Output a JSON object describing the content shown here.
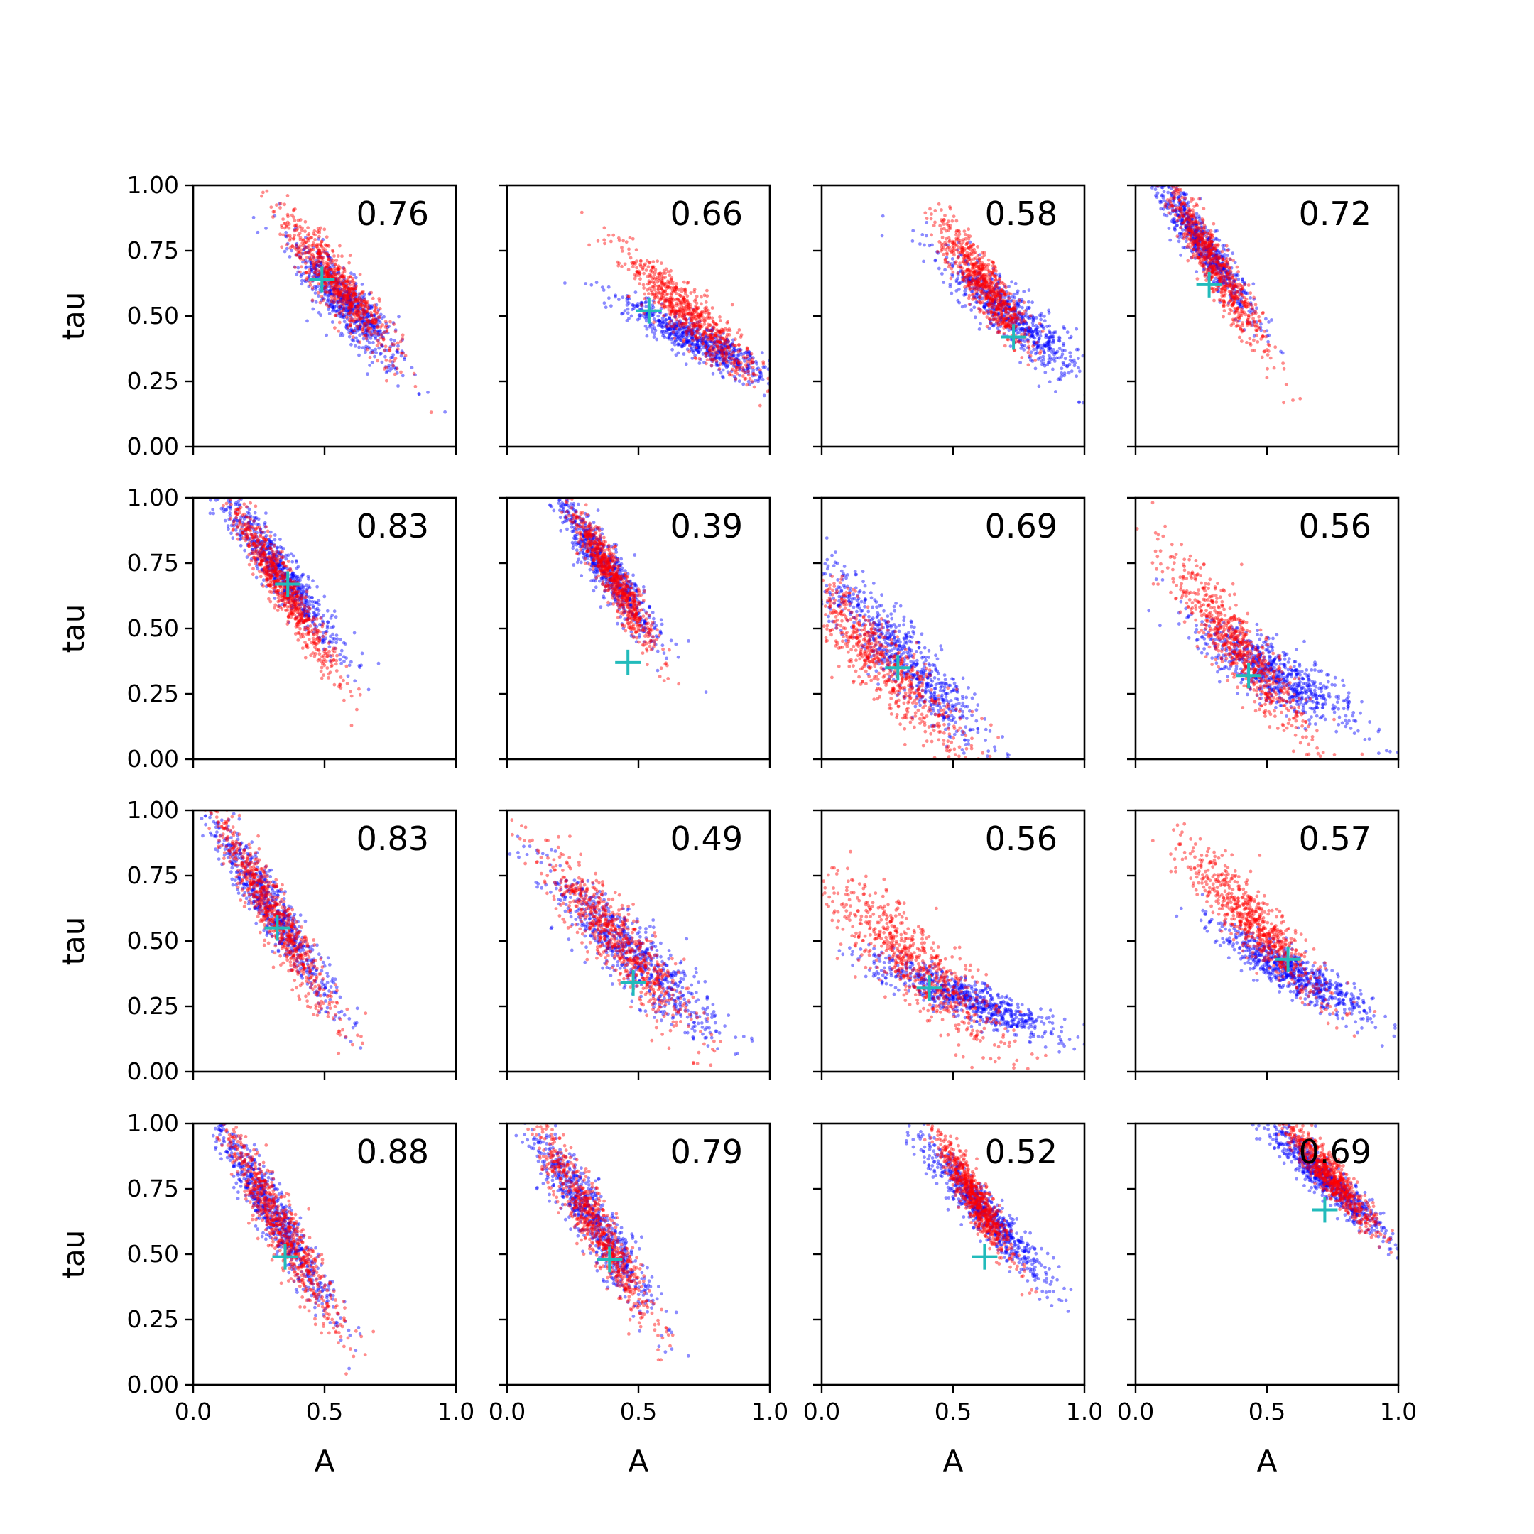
{
  "figure": {
    "x_label": "A",
    "y_label": "tau"
  },
  "chart_data": [
    {
      "type": "scatter",
      "row": 0,
      "col": 0,
      "xlim": [
        0,
        1
      ],
      "ylim": [
        0,
        1
      ],
      "annotation": "0.76",
      "marker": {
        "x": 0.49,
        "y": 0.64
      },
      "series": [
        {
          "color": "#0000ff",
          "center": [
            0.58,
            0.55
          ],
          "spread": [
            0.09,
            0.12
          ],
          "slope": -1.3
        },
        {
          "color": "#ff0000",
          "center": [
            0.55,
            0.62
          ],
          "spread": [
            0.08,
            0.13
          ],
          "slope": -1.4
        }
      ],
      "xticks": [
        0.0,
        0.5,
        1.0
      ],
      "yticks": [
        0.0,
        0.25,
        0.5,
        0.75,
        1.0
      ]
    },
    {
      "type": "scatter",
      "row": 0,
      "col": 1,
      "xlim": [
        0,
        1
      ],
      "ylim": [
        0,
        1
      ],
      "annotation": "0.66",
      "marker": {
        "x": 0.54,
        "y": 0.52
      },
      "series": [
        {
          "color": "#0000ff",
          "center": [
            0.74,
            0.4
          ],
          "spread": [
            0.12,
            0.08
          ],
          "slope": -0.6
        },
        {
          "color": "#ff0000",
          "center": [
            0.7,
            0.5
          ],
          "spread": [
            0.1,
            0.12
          ],
          "slope": -1.1
        }
      ],
      "xticks": [
        0.0,
        0.5,
        1.0
      ],
      "yticks": [
        0.0,
        0.25,
        0.5,
        0.75,
        1.0
      ]
    },
    {
      "type": "scatter",
      "row": 0,
      "col": 2,
      "xlim": [
        0,
        1
      ],
      "ylim": [
        0,
        1
      ],
      "annotation": "0.58",
      "marker": {
        "x": 0.73,
        "y": 0.42
      },
      "series": [
        {
          "color": "#0000ff",
          "center": [
            0.72,
            0.5
          ],
          "spread": [
            0.11,
            0.12
          ],
          "slope": -1.0
        },
        {
          "color": "#ff0000",
          "center": [
            0.62,
            0.62
          ],
          "spread": [
            0.07,
            0.12
          ],
          "slope": -1.6
        }
      ],
      "xticks": [
        0.0,
        0.5,
        1.0
      ],
      "yticks": [
        0.0,
        0.25,
        0.5,
        0.75,
        1.0
      ]
    },
    {
      "type": "scatter",
      "row": 0,
      "col": 3,
      "xlim": [
        0,
        1
      ],
      "ylim": [
        0,
        1
      ],
      "annotation": "0.72",
      "marker": {
        "x": 0.28,
        "y": 0.62
      },
      "series": [
        {
          "color": "#0000ff",
          "center": [
            0.25,
            0.78
          ],
          "spread": [
            0.06,
            0.14
          ],
          "slope": -1.5
        },
        {
          "color": "#ff0000",
          "center": [
            0.3,
            0.7
          ],
          "spread": [
            0.06,
            0.17
          ],
          "slope": -1.8
        }
      ],
      "xticks": [
        0.0,
        0.5,
        1.0
      ],
      "yticks": [
        0.0,
        0.25,
        0.5,
        0.75,
        1.0
      ]
    },
    {
      "type": "scatter",
      "row": 1,
      "col": 0,
      "xlim": [
        0,
        1
      ],
      "ylim": [
        0,
        1
      ],
      "annotation": "0.83",
      "marker": {
        "x": 0.36,
        "y": 0.67
      },
      "series": [
        {
          "color": "#0000ff",
          "center": [
            0.33,
            0.72
          ],
          "spread": [
            0.07,
            0.15
          ],
          "slope": -1.4
        },
        {
          "color": "#ff0000",
          "center": [
            0.34,
            0.66
          ],
          "spread": [
            0.06,
            0.16
          ],
          "slope": -1.7
        }
      ],
      "xticks": [
        0.0,
        0.5,
        1.0
      ],
      "yticks": [
        0.0,
        0.25,
        0.5,
        0.75,
        1.0
      ]
    },
    {
      "type": "scatter",
      "row": 1,
      "col": 1,
      "xlim": [
        0,
        1
      ],
      "ylim": [
        0,
        1
      ],
      "annotation": "0.39",
      "marker": {
        "x": 0.46,
        "y": 0.37
      },
      "series": [
        {
          "color": "#0000ff",
          "center": [
            0.38,
            0.73
          ],
          "spread": [
            0.07,
            0.14
          ],
          "slope": -1.6
        },
        {
          "color": "#ff0000",
          "center": [
            0.4,
            0.7
          ],
          "spread": [
            0.05,
            0.14
          ],
          "slope": -1.8
        }
      ],
      "xticks": [
        0.0,
        0.5,
        1.0
      ],
      "yticks": [
        0.0,
        0.25,
        0.5,
        0.75,
        1.0
      ]
    },
    {
      "type": "scatter",
      "row": 1,
      "col": 2,
      "xlim": [
        0,
        1
      ],
      "ylim": [
        0,
        1
      ],
      "annotation": "0.69",
      "marker": {
        "x": 0.29,
        "y": 0.35
      },
      "series": [
        {
          "color": "#0000ff",
          "center": [
            0.3,
            0.4
          ],
          "spread": [
            0.12,
            0.18
          ],
          "slope": -1.2
        },
        {
          "color": "#ff0000",
          "center": [
            0.22,
            0.38
          ],
          "spread": [
            0.13,
            0.2
          ],
          "slope": -1.2
        }
      ],
      "xticks": [
        0.0,
        0.5,
        1.0
      ],
      "yticks": [
        0.0,
        0.25,
        0.5,
        0.75,
        1.0
      ]
    },
    {
      "type": "scatter",
      "row": 1,
      "col": 3,
      "xlim": [
        0,
        1
      ],
      "ylim": [
        0,
        1
      ],
      "annotation": "0.56",
      "marker": {
        "x": 0.43,
        "y": 0.32
      },
      "series": [
        {
          "color": "#0000ff",
          "center": [
            0.52,
            0.33
          ],
          "spread": [
            0.15,
            0.1
          ],
          "slope": -0.8
        },
        {
          "color": "#ff0000",
          "center": [
            0.4,
            0.42
          ],
          "spread": [
            0.1,
            0.17
          ],
          "slope": -1.4
        }
      ],
      "xticks": [
        0.0,
        0.5,
        1.0
      ],
      "yticks": [
        0.0,
        0.25,
        0.5,
        0.75,
        1.0
      ]
    },
    {
      "type": "scatter",
      "row": 2,
      "col": 0,
      "xlim": [
        0,
        1
      ],
      "ylim": [
        0,
        1
      ],
      "annotation": "0.83",
      "marker": {
        "x": 0.32,
        "y": 0.55
      },
      "series": [
        {
          "color": "#0000ff",
          "center": [
            0.3,
            0.62
          ],
          "spread": [
            0.07,
            0.18
          ],
          "slope": -1.6
        },
        {
          "color": "#ff0000",
          "center": [
            0.31,
            0.6
          ],
          "spread": [
            0.07,
            0.19
          ],
          "slope": -1.8
        }
      ],
      "xticks": [
        0.0,
        0.5,
        1.0
      ],
      "yticks": [
        0.0,
        0.25,
        0.5,
        0.75,
        1.0
      ]
    },
    {
      "type": "scatter",
      "row": 2,
      "col": 1,
      "xlim": [
        0,
        1
      ],
      "ylim": [
        0,
        1
      ],
      "annotation": "0.49",
      "marker": {
        "x": 0.48,
        "y": 0.34
      },
      "series": [
        {
          "color": "#0000ff",
          "center": [
            0.48,
            0.45
          ],
          "spread": [
            0.13,
            0.16
          ],
          "slope": -1.1
        },
        {
          "color": "#ff0000",
          "center": [
            0.42,
            0.5
          ],
          "spread": [
            0.11,
            0.17
          ],
          "slope": -1.3
        }
      ],
      "xticks": [
        0.0,
        0.5,
        1.0
      ],
      "yticks": [
        0.0,
        0.25,
        0.5,
        0.75,
        1.0
      ]
    },
    {
      "type": "scatter",
      "row": 2,
      "col": 2,
      "xlim": [
        0,
        1
      ],
      "ylim": [
        0,
        1
      ],
      "annotation": "0.56",
      "marker": {
        "x": 0.41,
        "y": 0.32
      },
      "series": [
        {
          "color": "#0000ff",
          "center": [
            0.55,
            0.28
          ],
          "spread": [
            0.15,
            0.08
          ],
          "slope": -0.5
        },
        {
          "color": "#ff0000",
          "center": [
            0.35,
            0.42
          ],
          "spread": [
            0.15,
            0.17
          ],
          "slope": -1.1
        }
      ],
      "xticks": [
        0.0,
        0.5,
        1.0
      ],
      "yticks": [
        0.0,
        0.25,
        0.5,
        0.75,
        1.0
      ]
    },
    {
      "type": "scatter",
      "row": 2,
      "col": 3,
      "xlim": [
        0,
        1
      ],
      "ylim": [
        0,
        1
      ],
      "annotation": "0.57",
      "marker": {
        "x": 0.58,
        "y": 0.43
      },
      "series": [
        {
          "color": "#0000ff",
          "center": [
            0.6,
            0.38
          ],
          "spread": [
            0.12,
            0.09
          ],
          "slope": -0.7
        },
        {
          "color": "#ff0000",
          "center": [
            0.46,
            0.56
          ],
          "spread": [
            0.1,
            0.14
          ],
          "slope": -1.2
        }
      ],
      "xticks": [
        0.0,
        0.5,
        1.0
      ],
      "yticks": [
        0.0,
        0.25,
        0.5,
        0.75,
        1.0
      ]
    },
    {
      "type": "scatter",
      "row": 3,
      "col": 0,
      "xlim": [
        0,
        1
      ],
      "ylim": [
        0,
        1
      ],
      "annotation": "0.88",
      "marker": {
        "x": 0.35,
        "y": 0.49
      },
      "series": [
        {
          "color": "#0000ff",
          "center": [
            0.3,
            0.66
          ],
          "spread": [
            0.07,
            0.18
          ],
          "slope": -1.7
        },
        {
          "color": "#ff0000",
          "center": [
            0.34,
            0.6
          ],
          "spread": [
            0.07,
            0.2
          ],
          "slope": -1.9
        }
      ],
      "xticks": [
        0.0,
        0.5,
        1.0
      ],
      "yticks": [
        0.0,
        0.25,
        0.5,
        0.75,
        1.0
      ]
    },
    {
      "type": "scatter",
      "row": 3,
      "col": 1,
      "xlim": [
        0,
        1
      ],
      "ylim": [
        0,
        1
      ],
      "annotation": "0.79",
      "marker": {
        "x": 0.39,
        "y": 0.48
      },
      "series": [
        {
          "color": "#0000ff",
          "center": [
            0.32,
            0.64
          ],
          "spread": [
            0.08,
            0.18
          ],
          "slope": -1.6
        },
        {
          "color": "#ff0000",
          "center": [
            0.33,
            0.62
          ],
          "spread": [
            0.07,
            0.19
          ],
          "slope": -1.8
        }
      ],
      "xticks": [
        0.0,
        0.5,
        1.0
      ],
      "yticks": [
        0.0,
        0.25,
        0.5,
        0.75,
        1.0
      ]
    },
    {
      "type": "scatter",
      "row": 3,
      "col": 2,
      "xlim": [
        0,
        1
      ],
      "ylim": [
        0,
        1
      ],
      "annotation": "0.52",
      "marker": {
        "x": 0.62,
        "y": 0.49
      },
      "series": [
        {
          "color": "#0000ff",
          "center": [
            0.62,
            0.66
          ],
          "spread": [
            0.07,
            0.14
          ],
          "slope": -1.2
        },
        {
          "color": "#ff0000",
          "center": [
            0.58,
            0.72
          ],
          "spread": [
            0.05,
            0.12
          ],
          "slope": -1.8
        }
      ],
      "xticks": [
        0.0,
        0.5,
        1.0
      ],
      "yticks": [
        0.0,
        0.25,
        0.5,
        0.75,
        1.0
      ]
    },
    {
      "type": "scatter",
      "row": 3,
      "col": 3,
      "xlim": [
        0,
        1
      ],
      "ylim": [
        0,
        1
      ],
      "annotation": "0.69",
      "marker": {
        "x": 0.72,
        "y": 0.67
      },
      "series": [
        {
          "color": "#0000ff",
          "center": [
            0.73,
            0.78
          ],
          "spread": [
            0.07,
            0.11
          ],
          "slope": -1.0
        },
        {
          "color": "#ff0000",
          "center": [
            0.74,
            0.8
          ],
          "spread": [
            0.06,
            0.1
          ],
          "slope": -1.3
        }
      ],
      "xticks": [
        0.0,
        0.5,
        1.0
      ],
      "yticks": [
        0.0,
        0.25,
        0.5,
        0.75,
        1.0
      ]
    }
  ]
}
